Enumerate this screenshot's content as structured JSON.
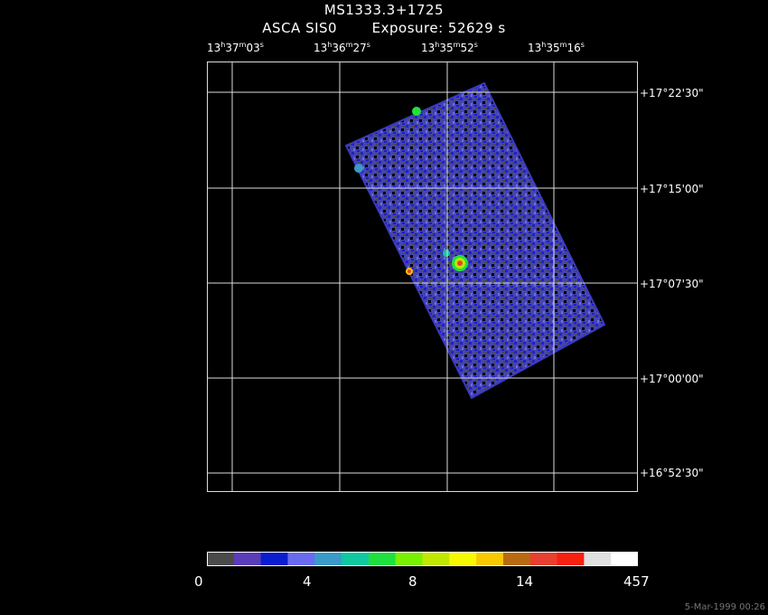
{
  "header": {
    "object": "MS1333.3+1725",
    "instrument": "ASCA SIS0",
    "exposure": "Exposure: 52629 s"
  },
  "ra_labels": [
    {
      "h": "13",
      "m": "37",
      "s": "03"
    },
    {
      "h": "13",
      "m": "36",
      "s": "27"
    },
    {
      "h": "13",
      "m": "35",
      "s": "52"
    },
    {
      "h": "13",
      "m": "35",
      "s": "16"
    }
  ],
  "dec_labels": [
    "+17°22'30\"",
    "+17°15'00\"",
    "+17°07'30\"",
    "+17°00'00\"",
    "+16°52'30\""
  ],
  "colorbar": {
    "colors": [
      "#4a4a4a",
      "#5a3db8",
      "#0a1ed0",
      "#6a6af0",
      "#3a9ac8",
      "#10c8a0",
      "#20e040",
      "#78f000",
      "#c0e800",
      "#f8f800",
      "#f8c800",
      "#b86a10",
      "#e84030",
      "#f82010",
      "#e0e0e0",
      "#ffffff"
    ],
    "tick_labels": [
      "0",
      "4",
      "8",
      "14",
      "457"
    ]
  },
  "timestamp": "5-Mar-1999 00:26"
}
